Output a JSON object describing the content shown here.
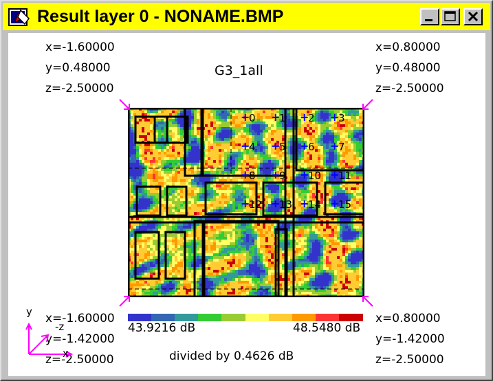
{
  "window": {
    "title": "Result layer 0 - NONAME.BMP"
  },
  "title_buttons": {
    "minimize_icon": "minimize-icon",
    "maximize_icon": "maximize-icon",
    "close_icon": "close-icon"
  },
  "plot": {
    "title": "G3_1all",
    "corners": {
      "top_left": {
        "x": "x=-1.60000",
        "y": "y=0.48000",
        "z": "z=-2.50000"
      },
      "top_right": {
        "x": "x=0.80000",
        "y": "y=0.48000",
        "z": "z=-2.50000"
      },
      "bottom_left": {
        "x": "x=-1.60000",
        "y": "y=-1.42000",
        "z": "z=-2.50000"
      },
      "bottom_right": {
        "x": "x=0.80000",
        "y": "y=-1.42000",
        "z": "z=-2.50000"
      }
    },
    "markers": [
      "0",
      "1",
      "2",
      "3",
      "4",
      "5",
      "6",
      "7",
      "8",
      "9",
      "10",
      "11",
      "12",
      "13",
      "14",
      "15"
    ],
    "legend": {
      "min_label": "43.9216 dB",
      "max_label": "48.5480 dB",
      "step_label": "divided by 0.4626 dB",
      "colors": [
        "#3333cc",
        "#3366b3",
        "#33999a",
        "#33cc33",
        "#99cc33",
        "#ffff66",
        "#ffcc33",
        "#ff9900",
        "#ff3333",
        "#cc0000"
      ]
    },
    "axes": {
      "y": "y",
      "z": "-z",
      "x": "x"
    }
  }
}
